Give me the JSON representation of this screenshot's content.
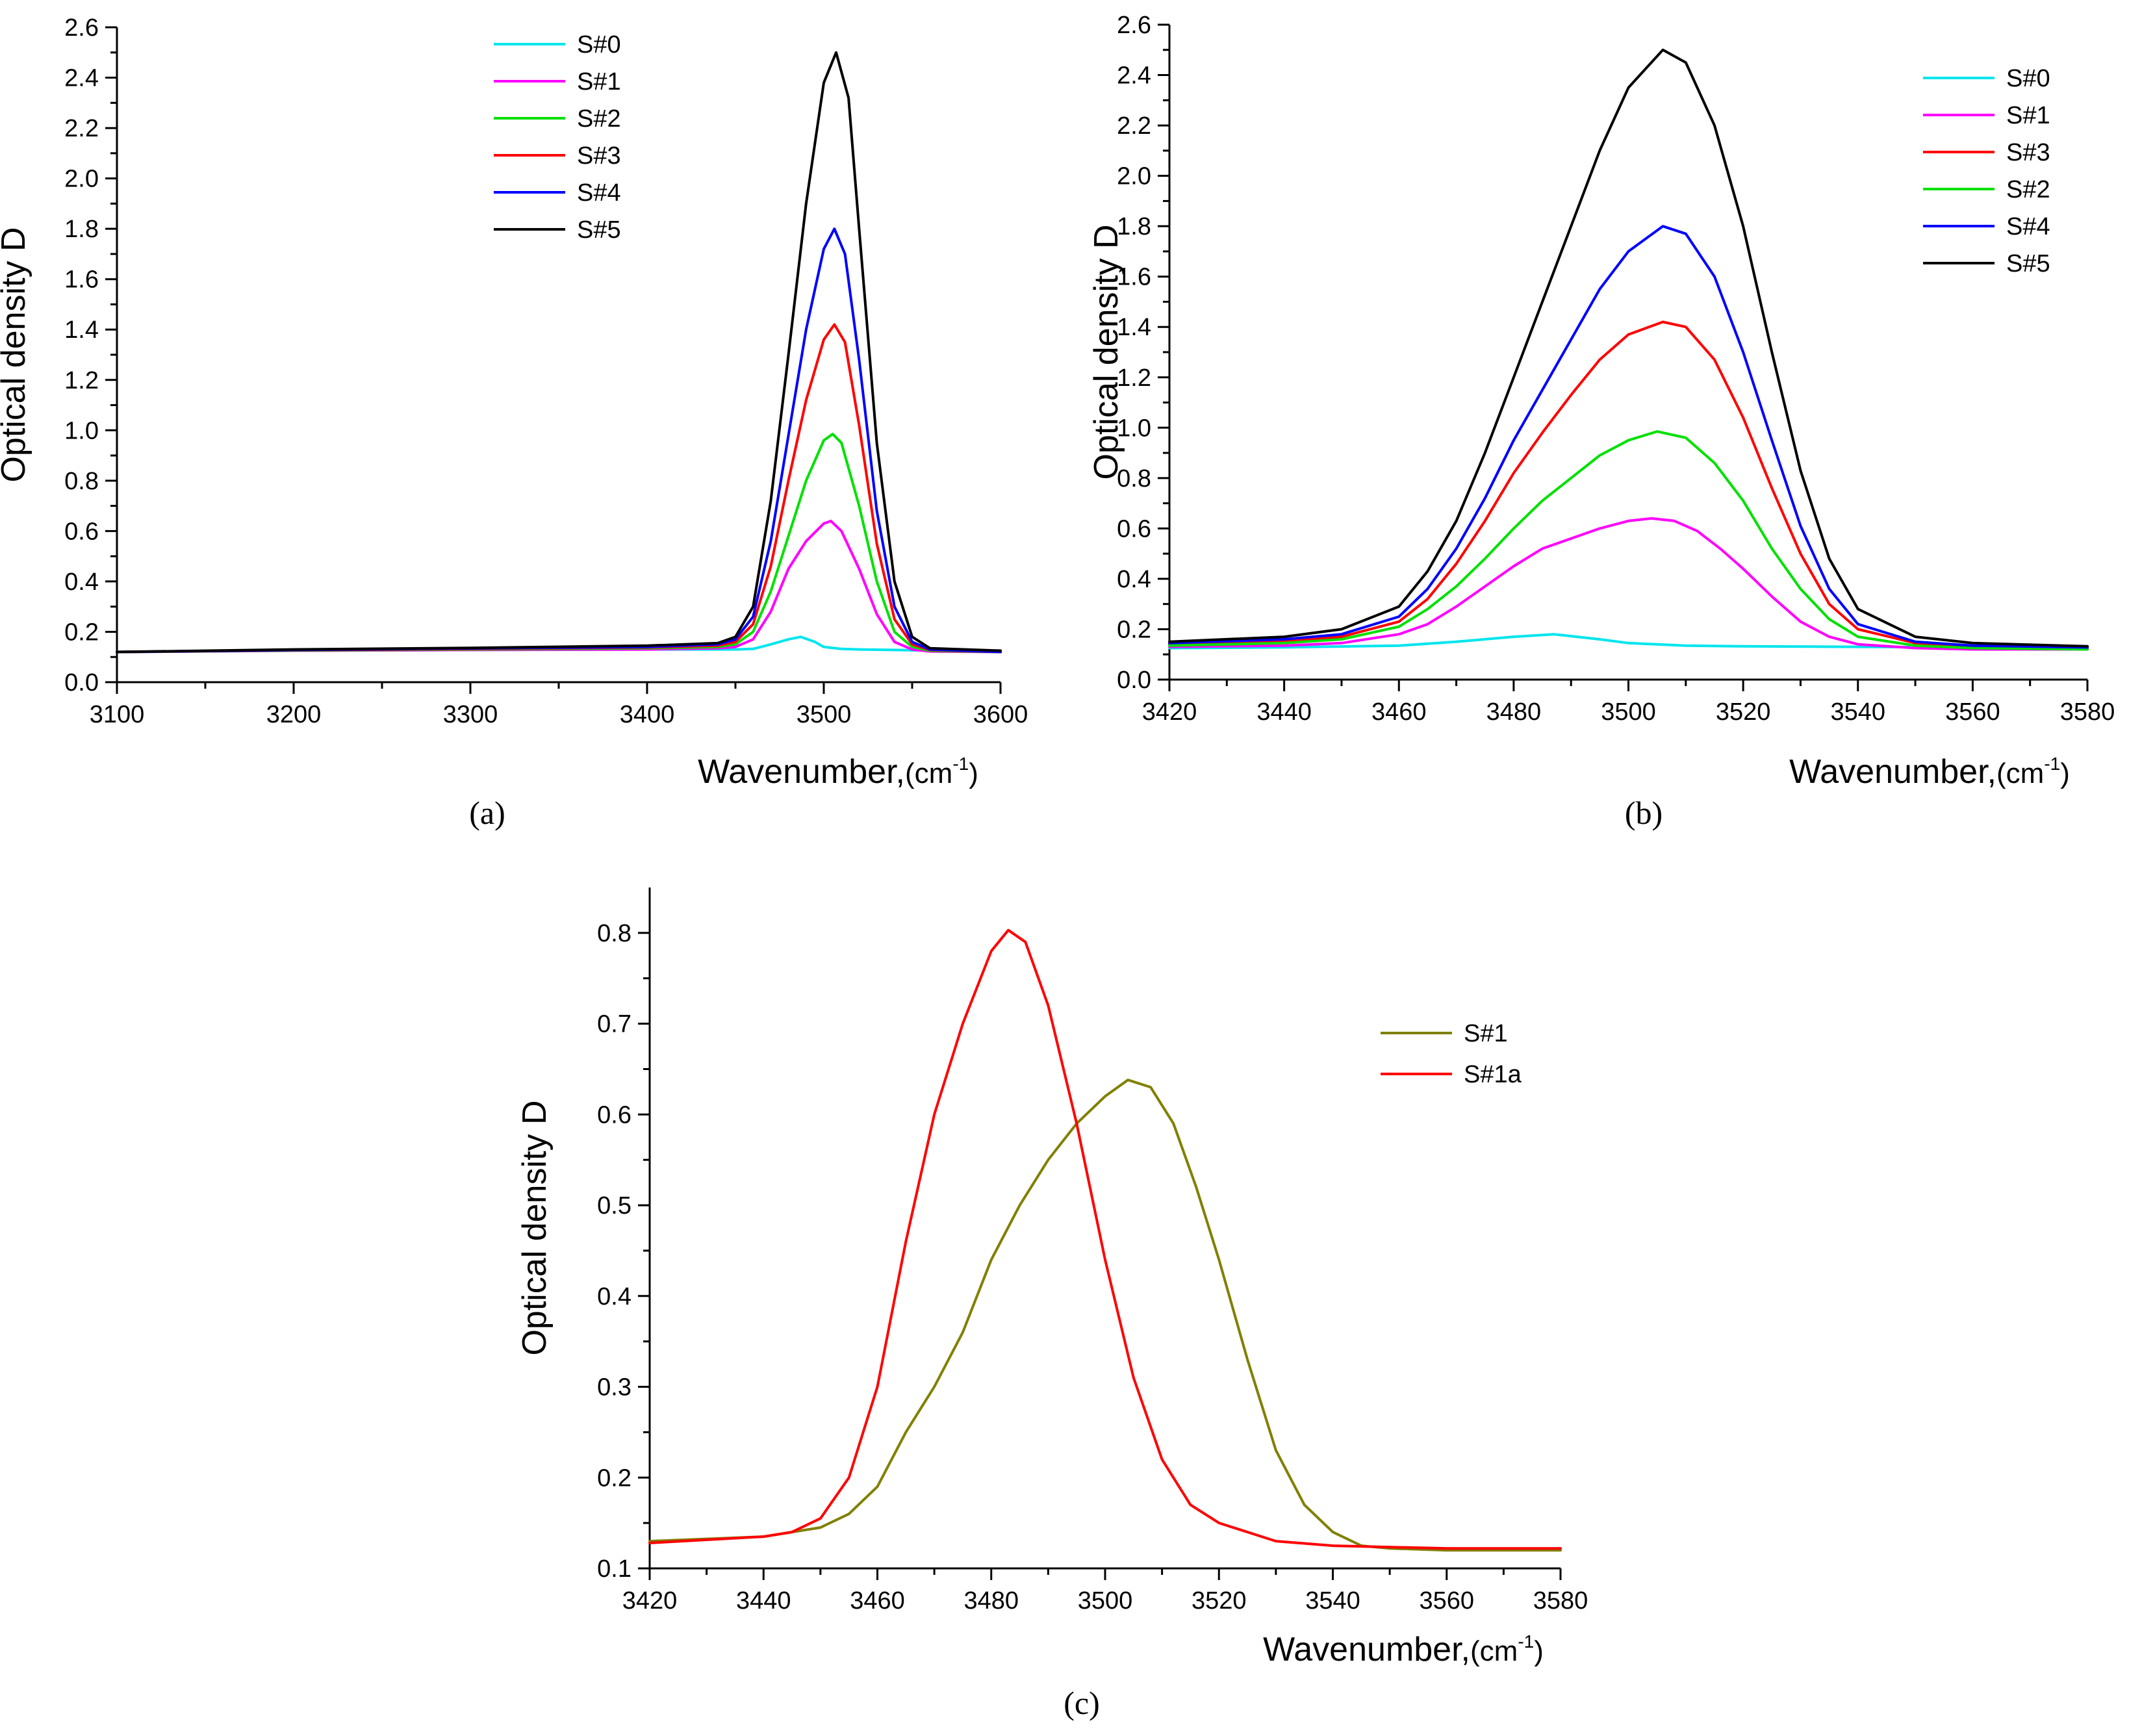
{
  "chart_data": [
    {
      "type": "line",
      "panel_label": "(a)",
      "xlabel": "Wavenumber,",
      "xlabel_unit": "(cm",
      "xlabel_sup": "-1",
      "xlabel_close": ")",
      "ylabel": "Optical density D",
      "xlim": [
        3100,
        3600
      ],
      "ylim": [
        0,
        2.6
      ],
      "xticks": [
        3100,
        3200,
        3300,
        3400,
        3500,
        3600
      ],
      "xtick_labels": [
        "3100",
        "3200",
        "3300",
        "3400",
        "3500",
        "3600"
      ],
      "yticks": [
        0,
        0.2,
        0.4,
        0.6,
        0.8,
        1.0,
        1.2,
        1.4,
        1.6,
        1.8,
        2.0,
        2.2,
        2.4,
        2.6
      ],
      "ytick_labels": [
        "0.0",
        "0.2",
        "0.4",
        "0.6",
        "0.8",
        "1.0",
        "1.2",
        "1.4",
        "1.6",
        "1.8",
        "2.0",
        "2.2",
        "2.4",
        "2.6"
      ],
      "legend_position": "top-center",
      "series": [
        {
          "name": "S#0",
          "color": "#00e5ee",
          "x": [
            3100,
            3200,
            3300,
            3400,
            3450,
            3460,
            3470,
            3480,
            3487,
            3495,
            3500,
            3510,
            3520,
            3540,
            3560,
            3600
          ],
          "values": [
            0.12,
            0.125,
            0.128,
            0.13,
            0.13,
            0.132,
            0.15,
            0.17,
            0.18,
            0.16,
            0.14,
            0.132,
            0.13,
            0.128,
            0.126,
            0.125
          ]
        },
        {
          "name": "S#1",
          "color": "#ff00ff",
          "x": [
            3100,
            3200,
            3300,
            3400,
            3440,
            3450,
            3460,
            3470,
            3480,
            3490,
            3500,
            3504,
            3510,
            3520,
            3530,
            3540,
            3550,
            3560,
            3600
          ],
          "values": [
            0.12,
            0.125,
            0.128,
            0.13,
            0.135,
            0.14,
            0.17,
            0.28,
            0.45,
            0.56,
            0.63,
            0.64,
            0.6,
            0.45,
            0.27,
            0.16,
            0.13,
            0.122,
            0.12
          ]
        },
        {
          "name": "S#2",
          "color": "#00e000",
          "x": [
            3100,
            3200,
            3300,
            3400,
            3440,
            3450,
            3460,
            3470,
            3480,
            3490,
            3500,
            3505,
            3510,
            3520,
            3530,
            3540,
            3550,
            3560,
            3600
          ],
          "values": [
            0.12,
            0.126,
            0.13,
            0.135,
            0.14,
            0.15,
            0.2,
            0.36,
            0.58,
            0.8,
            0.96,
            0.985,
            0.95,
            0.7,
            0.4,
            0.2,
            0.14,
            0.125,
            0.12
          ]
        },
        {
          "name": "S#3",
          "color": "#ff0000",
          "x": [
            3100,
            3200,
            3300,
            3400,
            3440,
            3450,
            3460,
            3470,
            3480,
            3490,
            3500,
            3506,
            3512,
            3520,
            3530,
            3540,
            3550,
            3560,
            3600
          ],
          "values": [
            0.12,
            0.127,
            0.132,
            0.138,
            0.145,
            0.16,
            0.23,
            0.46,
            0.8,
            1.12,
            1.36,
            1.42,
            1.35,
            1.02,
            0.55,
            0.25,
            0.15,
            0.128,
            0.12
          ]
        },
        {
          "name": "S#4",
          "color": "#0000ff",
          "x": [
            3100,
            3200,
            3300,
            3400,
            3440,
            3450,
            3460,
            3470,
            3480,
            3490,
            3500,
            3506,
            3512,
            3520,
            3530,
            3540,
            3550,
            3560,
            3600
          ],
          "values": [
            0.12,
            0.128,
            0.134,
            0.14,
            0.15,
            0.17,
            0.26,
            0.56,
            0.98,
            1.4,
            1.72,
            1.8,
            1.7,
            1.28,
            0.68,
            0.3,
            0.16,
            0.13,
            0.12
          ]
        },
        {
          "name": "S#5",
          "color": "#000000",
          "x": [
            3100,
            3200,
            3300,
            3400,
            3440,
            3450,
            3460,
            3470,
            3480,
            3490,
            3500,
            3507,
            3514,
            3520,
            3530,
            3540,
            3550,
            3560,
            3600
          ],
          "values": [
            0.12,
            0.13,
            0.136,
            0.145,
            0.155,
            0.18,
            0.3,
            0.72,
            1.3,
            1.9,
            2.38,
            2.5,
            2.32,
            1.8,
            0.95,
            0.4,
            0.18,
            0.135,
            0.125
          ]
        }
      ]
    },
    {
      "type": "line",
      "panel_label": "(b)",
      "xlabel": "Wavenumber,",
      "xlabel_unit": "(cm",
      "xlabel_sup": "-1",
      "xlabel_close": ")",
      "ylabel": "Optical density D",
      "xlim": [
        3420,
        3580
      ],
      "ylim": [
        0,
        2.6
      ],
      "xticks": [
        3420,
        3440,
        3460,
        3480,
        3500,
        3520,
        3540,
        3560,
        3580
      ],
      "xtick_labels": [
        "3420",
        "3440",
        "3460",
        "3480",
        "3500",
        "3520",
        "3540",
        "3560",
        "3580"
      ],
      "yticks": [
        0,
        0.2,
        0.4,
        0.6,
        0.8,
        1.0,
        1.2,
        1.4,
        1.6,
        1.8,
        2.0,
        2.2,
        2.4,
        2.6
      ],
      "ytick_labels": [
        "0.0",
        "0.2",
        "0.4",
        "0.6",
        "0.8",
        "1.0",
        "1.2",
        "1.4",
        "1.6",
        "1.8",
        "2.0",
        "2.2",
        "2.4",
        "2.6"
      ],
      "legend_position": "top-right",
      "series": [
        {
          "name": "S#0",
          "color": "#00e5ee",
          "x": [
            3420,
            3440,
            3460,
            3470,
            3480,
            3487,
            3495,
            3500,
            3510,
            3520,
            3540,
            3560,
            3580
          ],
          "values": [
            0.125,
            0.128,
            0.135,
            0.15,
            0.17,
            0.18,
            0.16,
            0.145,
            0.135,
            0.132,
            0.13,
            0.128,
            0.126
          ]
        },
        {
          "name": "S#1",
          "color": "#ff00ff",
          "x": [
            3420,
            3440,
            3450,
            3460,
            3465,
            3470,
            3475,
            3480,
            3485,
            3490,
            3495,
            3500,
            3504,
            3508,
            3512,
            3516,
            3520,
            3525,
            3530,
            3535,
            3540,
            3550,
            3560,
            3580
          ],
          "values": [
            0.13,
            0.135,
            0.145,
            0.18,
            0.22,
            0.29,
            0.37,
            0.45,
            0.52,
            0.56,
            0.6,
            0.63,
            0.64,
            0.63,
            0.59,
            0.52,
            0.44,
            0.33,
            0.23,
            0.17,
            0.14,
            0.125,
            0.12,
            0.12
          ]
        },
        {
          "name": "S#3",
          "color": "#ff0000",
          "x": [
            3420,
            3440,
            3450,
            3460,
            3465,
            3470,
            3475,
            3480,
            3485,
            3490,
            3495,
            3500,
            3506,
            3510,
            3515,
            3520,
            3525,
            3530,
            3535,
            3540,
            3550,
            3560,
            3580
          ],
          "values": [
            0.14,
            0.15,
            0.17,
            0.23,
            0.32,
            0.46,
            0.63,
            0.82,
            0.98,
            1.13,
            1.27,
            1.37,
            1.42,
            1.4,
            1.27,
            1.04,
            0.76,
            0.5,
            0.3,
            0.2,
            0.145,
            0.13,
            0.125
          ]
        },
        {
          "name": "S#2",
          "color": "#00e000",
          "x": [
            3420,
            3440,
            3450,
            3460,
            3465,
            3470,
            3475,
            3480,
            3485,
            3490,
            3495,
            3500,
            3505,
            3510,
            3515,
            3520,
            3525,
            3530,
            3535,
            3540,
            3550,
            3560,
            3580
          ],
          "values": [
            0.135,
            0.145,
            0.16,
            0.21,
            0.28,
            0.37,
            0.48,
            0.6,
            0.71,
            0.8,
            0.89,
            0.95,
            0.985,
            0.96,
            0.86,
            0.71,
            0.52,
            0.36,
            0.24,
            0.17,
            0.135,
            0.125,
            0.12
          ]
        },
        {
          "name": "S#4",
          "color": "#0000ff",
          "x": [
            3420,
            3440,
            3450,
            3460,
            3465,
            3470,
            3475,
            3480,
            3485,
            3490,
            3495,
            3500,
            3506,
            3510,
            3515,
            3520,
            3525,
            3530,
            3535,
            3540,
            3550,
            3560,
            3580
          ],
          "values": [
            0.145,
            0.16,
            0.18,
            0.25,
            0.36,
            0.52,
            0.72,
            0.95,
            1.15,
            1.35,
            1.55,
            1.7,
            1.8,
            1.77,
            1.6,
            1.3,
            0.95,
            0.61,
            0.36,
            0.22,
            0.15,
            0.135,
            0.128
          ]
        },
        {
          "name": "S#5",
          "color": "#000000",
          "x": [
            3420,
            3440,
            3450,
            3460,
            3465,
            3470,
            3475,
            3480,
            3485,
            3490,
            3495,
            3500,
            3506,
            3510,
            3515,
            3520,
            3525,
            3530,
            3535,
            3540,
            3550,
            3560,
            3580
          ],
          "values": [
            0.15,
            0.17,
            0.2,
            0.29,
            0.43,
            0.63,
            0.9,
            1.2,
            1.5,
            1.8,
            2.1,
            2.35,
            2.5,
            2.45,
            2.2,
            1.8,
            1.3,
            0.83,
            0.48,
            0.28,
            0.17,
            0.145,
            0.132
          ]
        }
      ]
    },
    {
      "type": "line",
      "panel_label": "(c)",
      "xlabel": "Wavenumber,",
      "xlabel_unit": "(cm",
      "xlabel_sup": "-1",
      "xlabel_close": ")",
      "ylabel": "Optical density D",
      "xlim": [
        3420,
        3580
      ],
      "ylim": [
        0.1,
        0.85
      ],
      "xticks": [
        3420,
        3440,
        3460,
        3480,
        3500,
        3520,
        3540,
        3560,
        3580
      ],
      "xtick_labels": [
        "3420",
        "3440",
        "3460",
        "3480",
        "3500",
        "3520",
        "3540",
        "3560",
        "3580"
      ],
      "yticks": [
        0.1,
        0.2,
        0.3,
        0.4,
        0.5,
        0.6,
        0.7,
        0.8
      ],
      "ytick_labels": [
        "0.1",
        "0.2",
        "0.3",
        "0.4",
        "0.5",
        "0.6",
        "0.7",
        "0.8"
      ],
      "legend_position": "top-right",
      "series": [
        {
          "name": "S#1",
          "color": "#808000",
          "x": [
            3420,
            3440,
            3450,
            3455,
            3460,
            3465,
            3470,
            3475,
            3480,
            3485,
            3490,
            3495,
            3500,
            3504,
            3508,
            3512,
            3516,
            3520,
            3525,
            3530,
            3535,
            3540,
            3545,
            3550,
            3560,
            3580
          ],
          "values": [
            0.13,
            0.135,
            0.145,
            0.16,
            0.19,
            0.25,
            0.3,
            0.36,
            0.44,
            0.5,
            0.55,
            0.59,
            0.62,
            0.638,
            0.63,
            0.59,
            0.52,
            0.44,
            0.33,
            0.23,
            0.17,
            0.14,
            0.125,
            0.122,
            0.12,
            0.12
          ]
        },
        {
          "name": "S#1a",
          "color": "#ff0000",
          "x": [
            3420,
            3440,
            3445,
            3450,
            3455,
            3460,
            3465,
            3470,
            3475,
            3480,
            3483,
            3486,
            3490,
            3495,
            3500,
            3505,
            3510,
            3515,
            3520,
            3530,
            3540,
            3560,
            3580
          ],
          "values": [
            0.128,
            0.135,
            0.14,
            0.155,
            0.2,
            0.3,
            0.46,
            0.6,
            0.7,
            0.78,
            0.803,
            0.79,
            0.72,
            0.59,
            0.44,
            0.31,
            0.22,
            0.17,
            0.15,
            0.13,
            0.125,
            0.122,
            0.122
          ]
        }
      ]
    }
  ]
}
